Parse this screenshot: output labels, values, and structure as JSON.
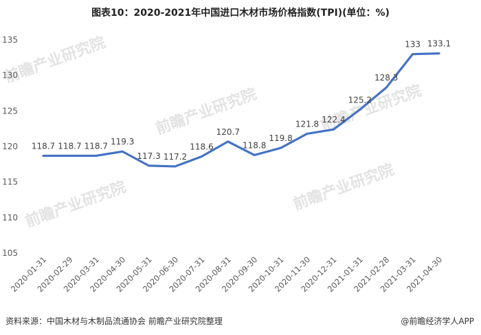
{
  "chart_data": {
    "type": "line",
    "title": "图表10：2020-2021年中国进口木材市场价格指数(TPI)(单位：%)",
    "categories": [
      "2020-01-31",
      "2020-02-29",
      "2020-03-31",
      "2020-04-30",
      "2020-05-31",
      "2020-06-30",
      "2020-07-31",
      "2020-08-31",
      "2020-09-30",
      "2020-10-31",
      "2020-11-30",
      "2020-12-31",
      "2021-01-31",
      "2021-02-28",
      "2021-03-31",
      "2021-04-30"
    ],
    "values": [
      118.7,
      118.7,
      118.7,
      119.3,
      117.3,
      117.2,
      118.6,
      120.7,
      118.8,
      119.8,
      121.8,
      122.4,
      125.2,
      128.3,
      133,
      133.1
    ],
    "value_labels": [
      "118.7",
      "118.7",
      "118.7",
      "119.3",
      "117.3",
      "117.2",
      "118.6",
      "120.7",
      "118.8",
      "119.8",
      "121.8",
      "122.4",
      "125.2",
      "128.3",
      "133",
      "133.1"
    ],
    "ylim": [
      105,
      135
    ],
    "yticks": [
      "105",
      "110",
      "115",
      "120",
      "125",
      "130",
      "135"
    ],
    "grid": false,
    "legend": "none",
    "series_color": "#4472C4",
    "xlabel": "",
    "ylabel": ""
  },
  "footer": {
    "source": "资料来源：中国木材与木制品流通协会 前瞻产业研究院整理",
    "credit": "@前瞻经济学人APP"
  },
  "watermark": {
    "brand": "前瞻产业研究院"
  }
}
